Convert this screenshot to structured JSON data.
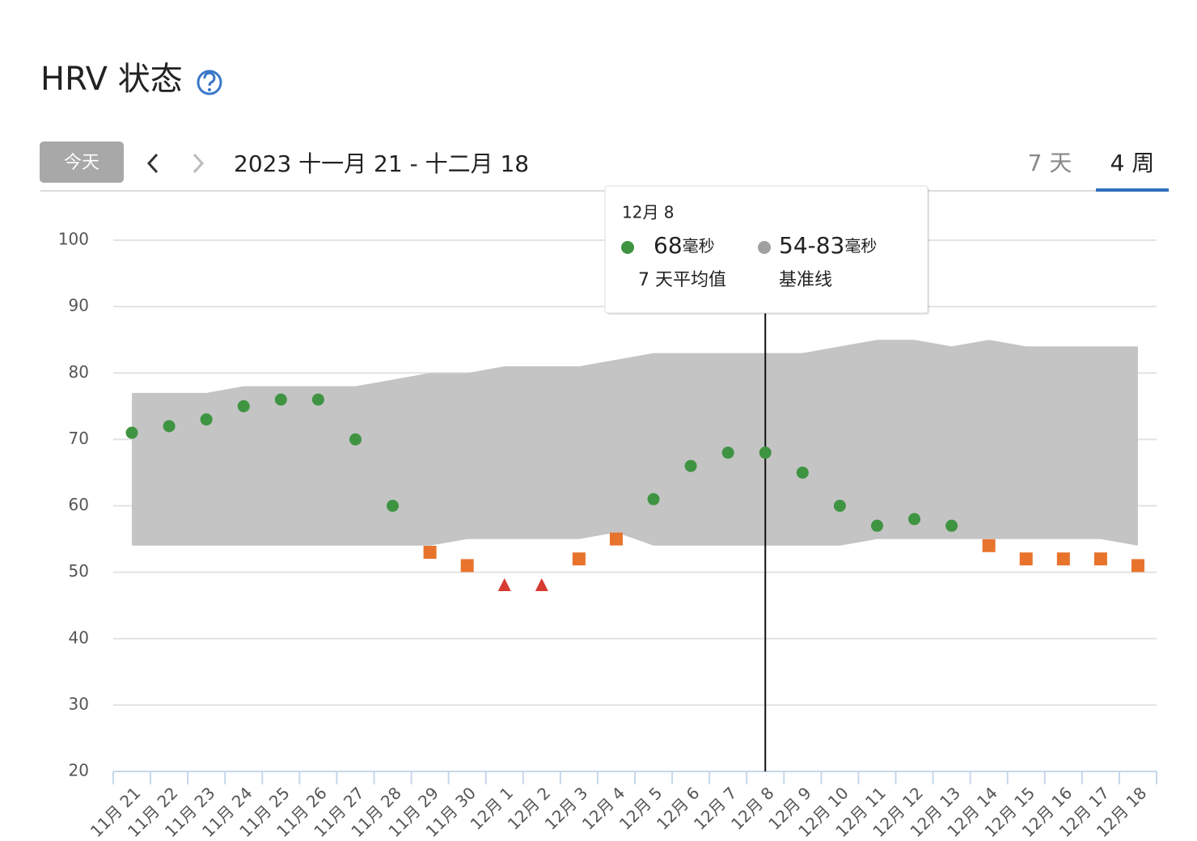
{
  "header": {
    "title": "HRV 状态"
  },
  "toolbar": {
    "today": "今天",
    "range": "2023 十一月 21 - 十二月 18",
    "tabs": [
      "7 天",
      "4 周"
    ],
    "active_tab": 1
  },
  "chart_data": {
    "type": "scatter",
    "categories": [
      "11月 21",
      "11月 22",
      "11月 23",
      "11月 24",
      "11月 25",
      "11月 26",
      "11月 27",
      "11月 28",
      "11月 29",
      "11月 30",
      "12月 1",
      "12月 2",
      "12月 3",
      "12月 4",
      "12月 5",
      "12月 6",
      "12月 7",
      "12月 8",
      "12月 9",
      "12月 10",
      "12月 11",
      "12月 12",
      "12月 13",
      "12月 14",
      "12月 15",
      "12月 16",
      "12月 17",
      "12月 18"
    ],
    "values": [
      71,
      72,
      73,
      75,
      76,
      76,
      70,
      60,
      53,
      51,
      48,
      48,
      52,
      55,
      61,
      66,
      68,
      68,
      65,
      60,
      57,
      58,
      57,
      54,
      52,
      52,
      52,
      51
    ],
    "point_shapes": [
      "circle",
      "circle",
      "circle",
      "circle",
      "circle",
      "circle",
      "circle",
      "circle",
      "square",
      "square",
      "triangle",
      "triangle",
      "square",
      "square",
      "circle",
      "circle",
      "circle",
      "circle",
      "circle",
      "circle",
      "circle",
      "circle",
      "circle",
      "square",
      "square",
      "square",
      "square",
      "square"
    ],
    "point_colors": [
      "#3f9442",
      "#3f9442",
      "#3f9442",
      "#3f9442",
      "#3f9442",
      "#3f9442",
      "#3f9442",
      "#3f9442",
      "#e8732c",
      "#e8732c",
      "#d63a30",
      "#d63a30",
      "#e8732c",
      "#e8732c",
      "#3f9442",
      "#3f9442",
      "#3f9442",
      "#3f9442",
      "#3f9442",
      "#3f9442",
      "#3f9442",
      "#3f9442",
      "#3f9442",
      "#e8732c",
      "#e8732c",
      "#e8732c",
      "#e8732c",
      "#e8732c"
    ],
    "band_upper": [
      77,
      77,
      77,
      78,
      78,
      78,
      78,
      79,
      80,
      80,
      81,
      81,
      81,
      82,
      83,
      83,
      83,
      83,
      83,
      84,
      85,
      85,
      84,
      85,
      84,
      84,
      84,
      84
    ],
    "band_lower": [
      54,
      54,
      54,
      54,
      54,
      54,
      54,
      54,
      54,
      55,
      55,
      55,
      55,
      56,
      54,
      54,
      54,
      54,
      54,
      54,
      55,
      55,
      55,
      55,
      55,
      55,
      55,
      54
    ],
    "band_color": "#c4c4c4",
    "ylim": [
      20,
      100
    ],
    "yticks": [
      20,
      30,
      40,
      50,
      60,
      70,
      80,
      90,
      100
    ],
    "grid": true,
    "tooltip": {
      "index": 17,
      "date": "12月 8",
      "value": 68,
      "unit": "毫秒",
      "range": "54-83",
      "value_caption": "7 天平均值",
      "range_caption": "基准线",
      "range_color": "#a0a0a0"
    }
  }
}
